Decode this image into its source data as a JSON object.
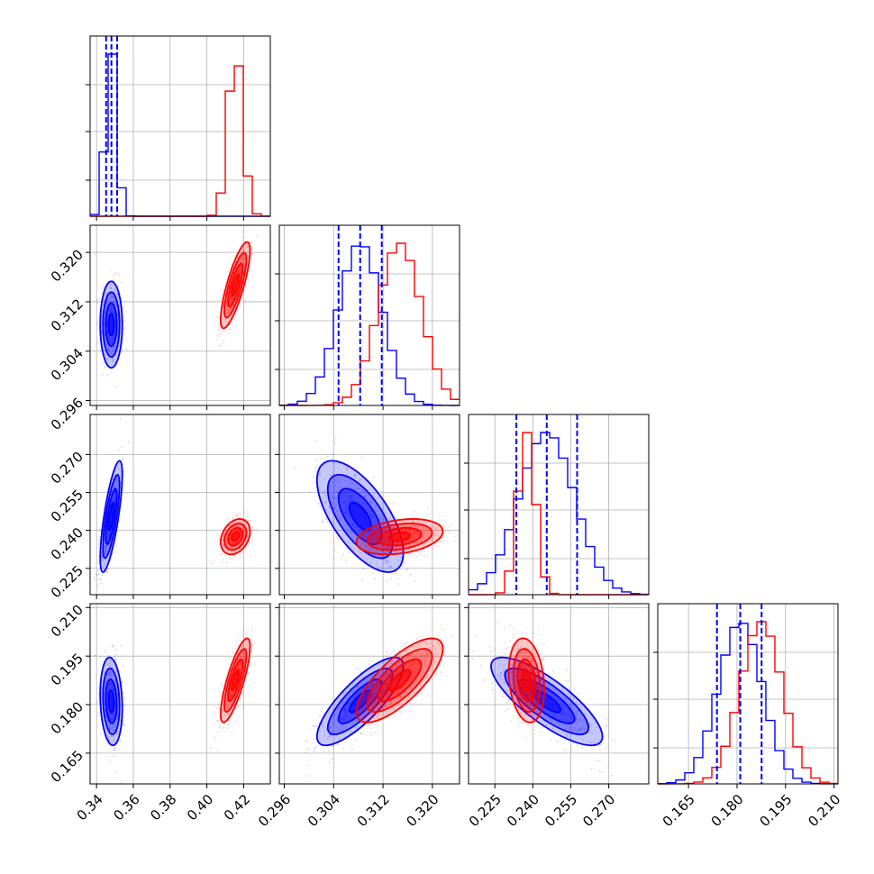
{
  "chart_data": {
    "type": "corner",
    "colors": {
      "blue": "#0000ff",
      "red": "#ff0000",
      "grid": "#b0b0b0",
      "axis": "#000000"
    },
    "grid": true,
    "parameters": [
      {
        "index": 0,
        "range": [
          0.3365,
          0.4345
        ],
        "ticks": [
          "0.34",
          "0.36",
          "0.38",
          "0.40",
          "0.42"
        ]
      },
      {
        "index": 1,
        "range": [
          0.2952,
          0.3244
        ],
        "ticks": [
          "0.296",
          "0.304",
          "0.312",
          "0.320"
        ]
      },
      {
        "index": 2,
        "range": [
          0.2146,
          0.2858
        ],
        "ticks": [
          "0.225",
          "0.240",
          "0.255",
          "0.270"
        ]
      },
      {
        "index": 3,
        "range": [
          0.1555,
          0.2112
        ],
        "ticks": [
          "0.165",
          "0.180",
          "0.195",
          "0.210"
        ]
      }
    ],
    "series": [
      {
        "color": "blue",
        "means": [
          0.348,
          0.3083,
          0.2455,
          0.181
        ],
        "sigmas": [
          0.003,
          0.0035,
          0.011,
          0.0068
        ],
        "correlations": [
          [
            1,
            0,
            0.75,
            -0.15
          ],
          [
            0,
            1,
            -0.65,
            0.8
          ],
          [
            0.75,
            -0.65,
            1,
            -0.8
          ],
          [
            -0.15,
            0.8,
            -0.8,
            1
          ]
        ],
        "quantiles": [
          [
            0.3452,
            0.3481,
            0.3512
          ],
          [
            0.3048,
            0.3083,
            0.3118
          ],
          [
            0.2335,
            0.2455,
            0.2575
          ],
          [
            0.1738,
            0.181,
            0.1876
          ]
        ]
      },
      {
        "color": "red",
        "means": [
          0.4155,
          0.3147,
          0.2375,
          0.1875
        ],
        "sigmas": [
          0.004,
          0.0035,
          0.0035,
          0.0065
        ],
        "correlations": [
          [
            1,
            0.8,
            0.3,
            0.8
          ],
          [
            0.8,
            1,
            0.3,
            0.75
          ],
          [
            0.3,
            0.3,
            1,
            -0.2
          ],
          [
            0.8,
            0.75,
            -0.2,
            1
          ]
        ],
        "quantiles": null
      }
    ]
  }
}
